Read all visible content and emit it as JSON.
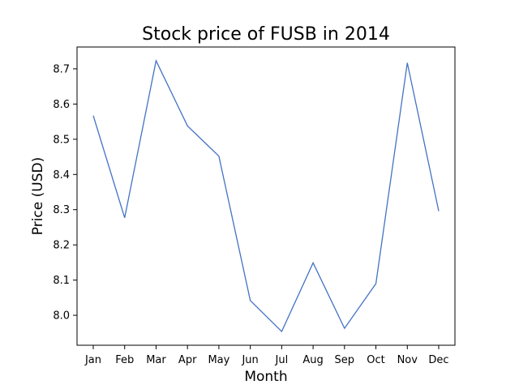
{
  "chart_data": {
    "type": "line",
    "title": "Stock price of FUSB in 2014",
    "xlabel": "Month",
    "ylabel": "Price (USD)",
    "categories": [
      "Jan",
      "Feb",
      "Mar",
      "Apr",
      "May",
      "Jun",
      "Jul",
      "Aug",
      "Sep",
      "Oct",
      "Nov",
      "Dec"
    ],
    "series": [
      {
        "values": [
          8.567,
          8.277,
          8.723,
          8.538,
          8.452,
          8.042,
          7.954,
          8.149,
          7.963,
          8.09,
          8.717,
          8.296
        ],
        "color": "#4472c4"
      }
    ],
    "ylim": [
      7.915,
      8.762
    ],
    "yticks": [
      "8.0",
      "8.1",
      "8.2",
      "8.3",
      "8.4",
      "8.5",
      "8.6",
      "8.7"
    ],
    "grid": false,
    "legend": "none"
  }
}
